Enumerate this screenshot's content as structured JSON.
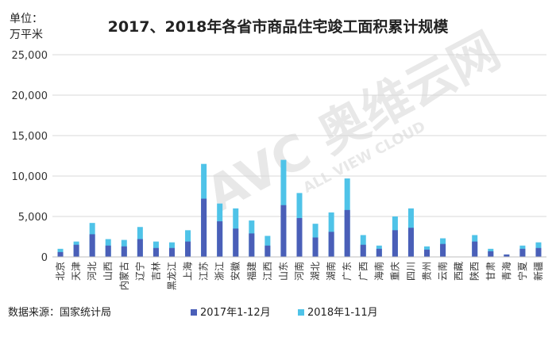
{
  "chart_data": {
    "type": "bar",
    "stacked": true,
    "title": "2017、2018年各省市商品住宅竣工面积累计规模",
    "unit_label_line1": "单位：",
    "unit_label_line2": "万平米",
    "source": "数据来源：国家统计局",
    "watermark_main": "AVC 奥维云网",
    "watermark_sub": "ALL VIEW CLOUD",
    "ylim": [
      0,
      25000
    ],
    "yticks": [
      0,
      5000,
      10000,
      15000,
      20000,
      25000
    ],
    "ytick_labels": [
      "0",
      "5,000",
      "10,000",
      "15,000",
      "20,000",
      "25,000"
    ],
    "grid": true,
    "legend_position": "bottom",
    "categories": [
      "北京",
      "天津",
      "河北",
      "山西",
      "内蒙古",
      "辽宁",
      "吉林",
      "黑龙江",
      "上海",
      "江苏",
      "浙江",
      "安徽",
      "福建",
      "江西",
      "山东",
      "河南",
      "湖北",
      "湖南",
      "广东",
      "广西",
      "海南",
      "重庆",
      "四川",
      "贵州",
      "云南",
      "西藏",
      "陕西",
      "甘肃",
      "青海",
      "宁夏",
      "新疆"
    ],
    "series": [
      {
        "name": "2017年1-12月",
        "color": "#4a5fb8",
        "values": [
          600,
          1500,
          2800,
          1400,
          1300,
          2200,
          1100,
          1100,
          1900,
          7200,
          4400,
          3500,
          2900,
          1400,
          6400,
          4800,
          2400,
          3100,
          5800,
          1500,
          1000,
          3300,
          3600,
          900,
          1600,
          0,
          1900,
          700,
          300,
          1000,
          1100
        ]
      },
      {
        "name": "2018年1-11月",
        "color": "#4fc3e8",
        "values": [
          1000,
          1900,
          4200,
          2200,
          2100,
          3700,
          1900,
          1800,
          3300,
          11500,
          6600,
          6000,
          4500,
          2600,
          12000,
          7900,
          4100,
          5500,
          9700,
          2700,
          1400,
          5000,
          6000,
          1300,
          2300,
          0,
          2700,
          1000,
          300,
          1400,
          1800
        ]
      }
    ]
  }
}
